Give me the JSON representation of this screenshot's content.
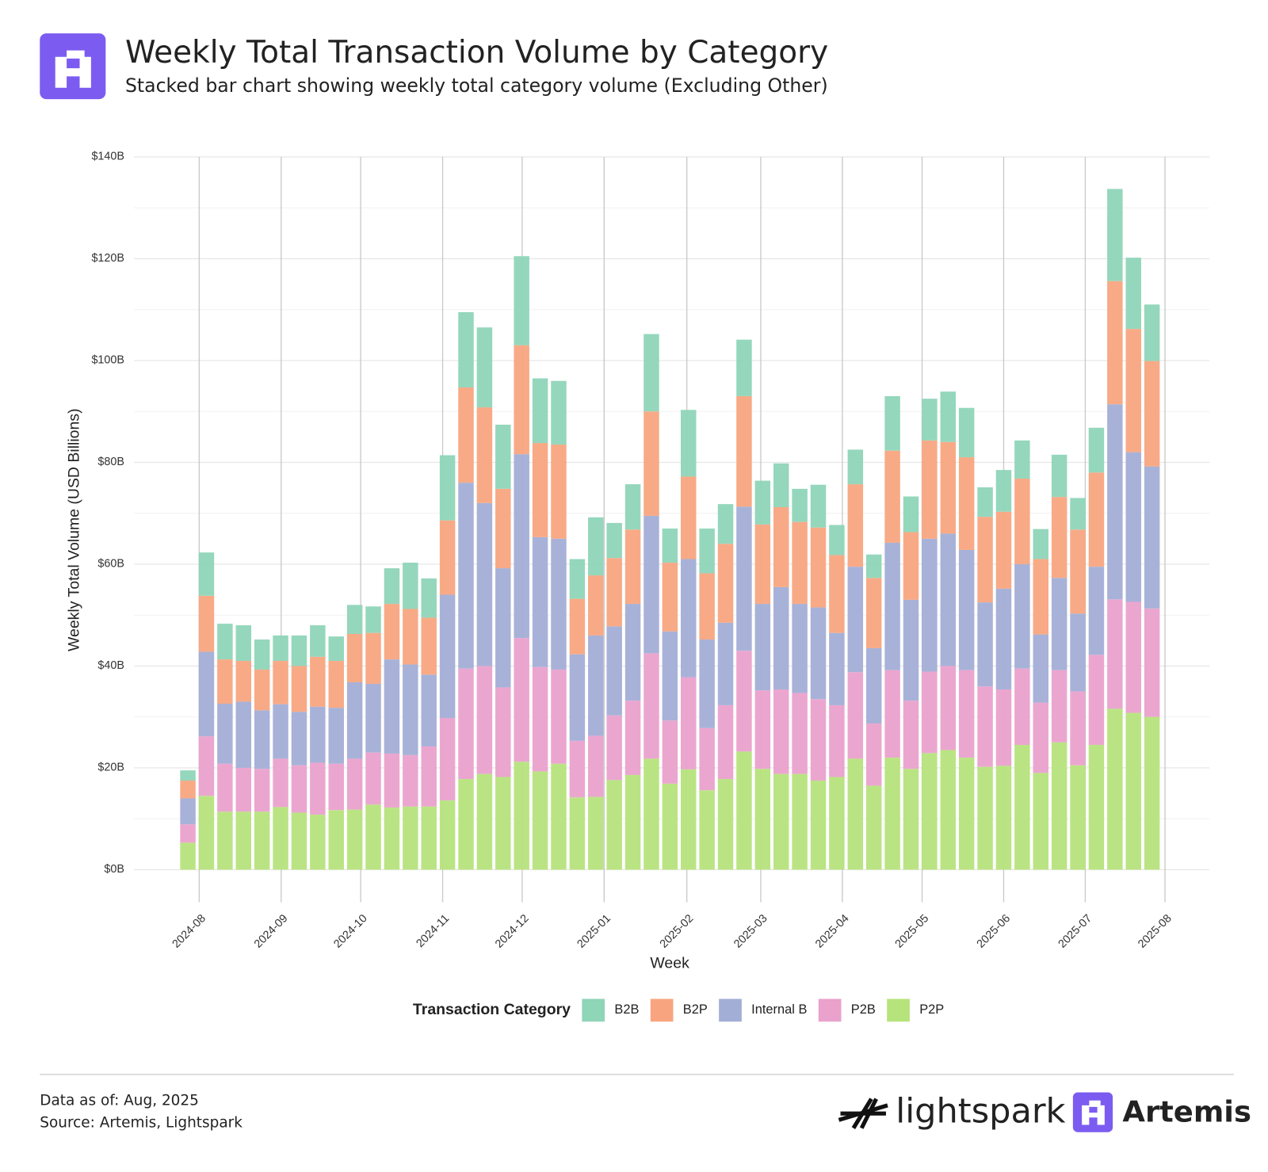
{
  "header": {
    "title": "Weekly Total Transaction Volume by Category",
    "subtitle": "Stacked bar chart showing weekly total category volume (Excluding Other)"
  },
  "chart_data": {
    "type": "bar",
    "stacked": true,
    "grid": true,
    "y_label": "Weekly Total Volume (USD Billions)",
    "x_label": "Week",
    "legend_title": "Transaction Category",
    "categories": [
      null,
      null,
      null,
      null,
      null,
      null,
      null,
      null,
      null,
      null,
      null,
      null,
      null,
      null,
      null,
      null,
      null,
      null,
      null,
      null,
      null,
      null,
      null,
      null,
      null,
      null,
      null,
      null,
      null,
      null,
      null,
      null,
      null,
      null,
      null,
      null,
      null,
      null,
      null,
      null,
      null,
      null,
      null,
      null,
      null,
      null,
      null,
      null,
      null,
      null,
      null,
      null,
      null
    ],
    "series": [
      {
        "name": "B2B",
        "color": "#8fd5b8",
        "values": [
          2.0,
          8.5,
          7.0,
          7.0,
          5.9,
          5.0,
          6.0,
          6.2,
          4.8,
          5.7,
          5.2,
          7.0,
          9.1,
          7.7,
          12.8,
          14.8,
          15.7,
          12.6,
          17.5,
          12.7,
          12.5,
          7.8,
          11.4,
          6.9,
          8.9,
          15.2,
          6.7,
          13.1,
          8.8,
          7.8,
          11.1,
          8.6,
          8.6,
          6.5,
          8.4,
          5.9,
          6.8,
          4.6,
          10.7,
          7.0,
          8.2,
          9.9,
          9.7,
          5.8,
          8.2,
          7.5,
          5.9,
          8.3,
          6.2,
          8.8,
          18.1,
          14.0,
          11.1
        ]
      },
      {
        "name": "B2P",
        "color": "#f8a57f",
        "values": [
          3.5,
          11.0,
          8.7,
          8.0,
          8.0,
          8.5,
          9.0,
          9.8,
          9.2,
          9.5,
          10.0,
          10.9,
          10.9,
          11.2,
          14.6,
          18.7,
          18.8,
          15.6,
          21.4,
          18.5,
          18.5,
          10.9,
          11.8,
          13.4,
          14.6,
          20.5,
          13.5,
          16.2,
          13.0,
          15.5,
          21.7,
          15.6,
          15.7,
          16.1,
          15.7,
          15.3,
          16.2,
          13.8,
          18.1,
          13.3,
          19.3,
          18.0,
          18.2,
          16.8,
          15.1,
          16.8,
          14.8,
          15.9,
          16.5,
          18.5,
          24.2,
          24.2,
          20.7
        ]
      },
      {
        "name": "Internal B",
        "color": "#a3aed6",
        "values": [
          5.1,
          16.6,
          11.8,
          13.0,
          11.5,
          10.7,
          10.5,
          11.0,
          11.0,
          15.0,
          13.5,
          18.5,
          17.8,
          14.1,
          24.2,
          36.5,
          32.0,
          23.4,
          36.1,
          25.5,
          25.7,
          17.0,
          19.7,
          17.5,
          19.0,
          27.0,
          17.5,
          23.2,
          17.4,
          16.2,
          28.3,
          17.0,
          20.1,
          17.5,
          18.0,
          14.2,
          20.7,
          14.8,
          25.0,
          19.8,
          26.1,
          26.0,
          23.6,
          16.5,
          19.8,
          20.5,
          13.4,
          18.1,
          15.3,
          17.3,
          38.3,
          29.4,
          27.9
        ]
      },
      {
        "name": "P2B",
        "color": "#eaa1cc",
        "values": [
          3.6,
          11.7,
          9.4,
          8.6,
          8.4,
          9.5,
          9.3,
          10.2,
          9.1,
          10.0,
          10.2,
          10.6,
          10.1,
          11.8,
          16.2,
          21.7,
          21.2,
          17.6,
          24.3,
          20.5,
          18.5,
          11.1,
          12.0,
          12.7,
          14.6,
          20.7,
          12.4,
          18.1,
          12.2,
          14.5,
          19.8,
          15.4,
          16.6,
          15.9,
          16.0,
          14.1,
          17.0,
          12.2,
          17.2,
          13.4,
          16.0,
          16.5,
          17.2,
          15.8,
          15.0,
          15.0,
          13.8,
          14.2,
          14.5,
          17.7,
          21.5,
          21.8,
          21.3
        ]
      },
      {
        "name": "P2P",
        "color": "#b6e37c",
        "values": [
          5.3,
          14.5,
          11.4,
          11.4,
          11.4,
          12.3,
          11.2,
          10.8,
          11.7,
          11.8,
          12.8,
          12.2,
          12.4,
          12.4,
          13.6,
          17.8,
          18.8,
          18.2,
          21.2,
          19.3,
          20.8,
          14.2,
          14.3,
          17.6,
          18.6,
          21.8,
          16.9,
          19.7,
          15.6,
          17.8,
          23.2,
          19.8,
          18.8,
          18.8,
          17.5,
          18.2,
          21.8,
          16.5,
          22.0,
          19.8,
          22.9,
          23.5,
          22.0,
          20.2,
          20.4,
          24.5,
          19.0,
          25.0,
          20.5,
          24.5,
          31.6,
          30.8,
          30.0
        ]
      }
    ],
    "ylim": [
      0,
      140
    ],
    "yticks": [
      {
        "value": 0,
        "label": "$0B"
      },
      {
        "value": 20,
        "label": "$20B"
      },
      {
        "value": 40,
        "label": "$40B"
      },
      {
        "value": 60,
        "label": "$60B"
      },
      {
        "value": 80,
        "label": "$80B"
      },
      {
        "value": 100,
        "label": "$100B"
      },
      {
        "value": 120,
        "label": "$120B"
      },
      {
        "value": 140,
        "label": "$140B"
      }
    ],
    "yminor": [
      10,
      30,
      50,
      70,
      90,
      110,
      130
    ],
    "xlim": [
      -2.9,
      55.1
    ],
    "xticks": [
      {
        "value": 0.61,
        "label": "2024-08"
      },
      {
        "value": 5.03,
        "label": "2024-09"
      },
      {
        "value": 9.32,
        "label": "2024-10"
      },
      {
        "value": 13.74,
        "label": "2024-11"
      },
      {
        "value": 18.03,
        "label": "2024-12"
      },
      {
        "value": 22.45,
        "label": "2025-01"
      },
      {
        "value": 26.91,
        "label": "2025-02"
      },
      {
        "value": 30.9,
        "label": "2025-03"
      },
      {
        "value": 35.3,
        "label": "2025-04"
      },
      {
        "value": 39.6,
        "label": "2025-05"
      },
      {
        "value": 44.0,
        "label": "2025-06"
      },
      {
        "value": 48.4,
        "label": "2025-07"
      },
      {
        "value": 52.7,
        "label": "2025-08"
      }
    ]
  },
  "footer": {
    "data_as_of": "Data as of: Aug, 2025",
    "source": "Source: Artemis, Lightspark",
    "brand_1": "lightspark",
    "brand_2": "Artemis"
  }
}
